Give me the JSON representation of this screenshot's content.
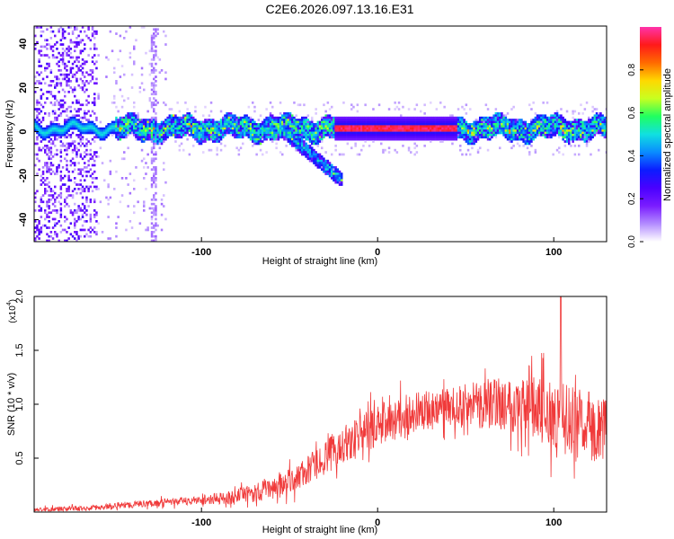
{
  "figure_title": "C2E6.2026.097.13.16.E31",
  "colors": {
    "snr_line": "#f03a3a",
    "axis": "#000000",
    "background": "#ffffff",
    "colormap": [
      "#ffffff",
      "#b38cff",
      "#7a1cff",
      "#4a00ff",
      "#0b1cff",
      "#0a8cff",
      "#10e0e0",
      "#20ff60",
      "#c8ff20",
      "#ffd800",
      "#ff6a00",
      "#ff1a1a",
      "#ff33aa"
    ]
  },
  "chart_data": [
    {
      "type": "heatmap",
      "title": "",
      "xlabel": "Height of straight line (km)",
      "ylabel": "Frequency (Hz)",
      "xlim": [
        -195,
        130
      ],
      "ylim": [
        -50,
        48
      ],
      "xticks": [
        -100,
        0,
        100
      ],
      "yticks": [
        40,
        20,
        0,
        -20,
        -40
      ],
      "colorbar": {
        "label": "Normalized spectral amplitude",
        "range": [
          0.0,
          1.0
        ],
        "ticks": [
          "0.0",
          "0.2",
          "0.4",
          "0.6",
          "0.8"
        ]
      },
      "features": {
        "main_band_center_hz": 2,
        "main_band_width_hz": 10,
        "peak_region_km": [
          -25,
          45
        ],
        "branch_from_km": [
          -62,
          -20
        ],
        "branch_to_hz": [
          6,
          -22
        ]
      }
    },
    {
      "type": "line",
      "title": "",
      "xlabel": "Height of straight line (km)",
      "ylabel": "SNR (10 * v/v)",
      "y_multiplier": "(x10",
      "y_multiplier_exp": "4",
      "xlim": [
        -195,
        130
      ],
      "ylim": [
        0,
        2.0
      ],
      "xticks": [
        -100,
        0,
        100
      ],
      "yticks": [
        "0.5",
        "1.0",
        "1.5",
        "2.0"
      ],
      "series": [
        {
          "name": "SNR",
          "envelope": {
            "x": [
              -195,
              -160,
              -150,
              -140,
              -120,
              -100,
              -80,
              -60,
              -50,
              -40,
              -30,
              -20,
              -10,
              0,
              10,
              20,
              40,
              60,
              70,
              80,
              90,
              100,
              110,
              120,
              130
            ],
            "y": [
              0.02,
              0.04,
              0.06,
              0.07,
              0.09,
              0.11,
              0.14,
              0.22,
              0.28,
              0.38,
              0.5,
              0.62,
              0.72,
              0.8,
              0.86,
              0.92,
              0.97,
              1.0,
              1.02,
              1.0,
              0.95,
              0.9,
              0.85,
              0.8,
              0.75
            ]
          },
          "noise_amplitude": {
            "x": [
              -195,
              -100,
              -50,
              0,
              40,
              80,
              100,
              130
            ],
            "y": [
              0.02,
              0.04,
              0.12,
              0.2,
              0.18,
              0.28,
              0.35,
              0.3
            ]
          },
          "peak_value": 2.0,
          "peak_x": 104
        }
      ]
    }
  ]
}
